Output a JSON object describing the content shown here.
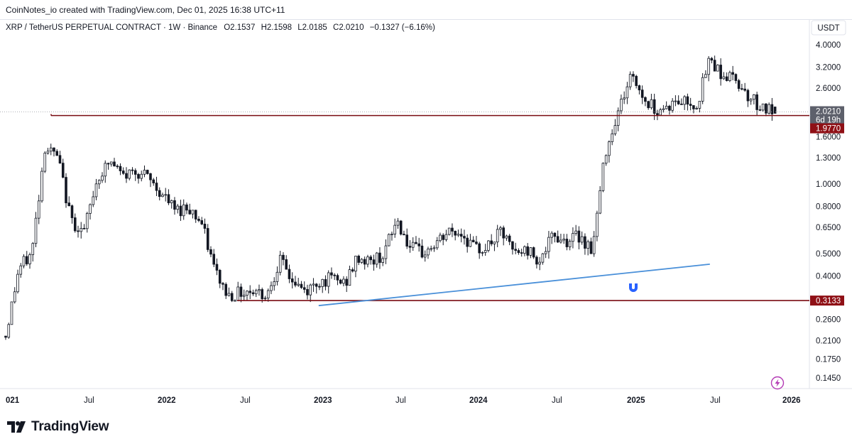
{
  "caption": "CoinNotes_io created with TradingView.com, Dec 01, 2025 16:38 UTC+11",
  "brand": {
    "name": "TradingView"
  },
  "colors": {
    "up_candle": "#131722",
    "down_candle": "#131722",
    "resistance_line": "#7a0c12",
    "trendline": "#4a90d9",
    "label_red": "#8f1016",
    "label_gray": "#5d606b"
  },
  "chart_data": {
    "type": "candlestick",
    "symbol": "XRP / TetherUS PERPETUAL CONTRACT · 1W · Binance",
    "ohlc_label": {
      "open": "O2.1537",
      "high": "H2.1598",
      "low": "L2.0185",
      "close": "C2.0210",
      "change": "−0.1327 (−6.16%)"
    },
    "currency": "USDT",
    "y_scale": "log",
    "y_ticks": [
      "4.0000",
      "3.2000",
      "2.6000",
      "1.6000",
      "1.3000",
      "1.0000",
      "0.8000",
      "0.6500",
      "0.5000",
      "0.4000",
      "0.2600",
      "0.2100",
      "0.1750",
      "0.1450"
    ],
    "x_ticks": [
      {
        "label": "021",
        "bold": true
      },
      {
        "label": "Jul",
        "bold": false
      },
      {
        "label": "2022",
        "bold": true
      },
      {
        "label": "Jul",
        "bold": false
      },
      {
        "label": "2023",
        "bold": true
      },
      {
        "label": "Jul",
        "bold": false
      },
      {
        "label": "2024",
        "bold": true
      },
      {
        "label": "Jul",
        "bold": false
      },
      {
        "label": "2025",
        "bold": true
      },
      {
        "label": "Jul",
        "bold": false
      },
      {
        "label": "2026",
        "bold": true
      }
    ],
    "price_labels": {
      "last_price": "2.0210",
      "countdown": "6d 19h",
      "resistance": "1.9770",
      "support": "0.3133"
    },
    "lines": {
      "resistance_level": 1.977,
      "support_level": 0.3133,
      "trendline": {
        "from": {
          "x": "2023-01",
          "y": 0.298
        },
        "to": {
          "x": "2025-07",
          "y": 0.45
        }
      }
    },
    "close_path": [
      [
        "2021-01",
        0.22
      ],
      [
        "2021-02",
        0.43
      ],
      [
        "2021-03",
        0.5
      ],
      [
        "2021-04",
        1.45
      ],
      [
        "2021-05",
        1.3
      ],
      [
        "2021-06",
        0.7
      ],
      [
        "2021-07",
        0.62
      ],
      [
        "2021-08",
        1.05
      ],
      [
        "2021-09",
        1.25
      ],
      [
        "2021-10",
        1.08
      ],
      [
        "2021-11",
        1.15
      ],
      [
        "2021-12",
        1.05
      ],
      [
        "2022-01",
        0.9
      ],
      [
        "2022-02",
        0.77
      ],
      [
        "2022-03",
        0.8
      ],
      [
        "2022-04",
        0.68
      ],
      [
        "2022-05",
        0.43
      ],
      [
        "2022-06",
        0.33
      ],
      [
        "2022-07",
        0.34
      ],
      [
        "2022-08",
        0.35
      ],
      [
        "2022-09",
        0.33
      ],
      [
        "2022-10",
        0.47
      ],
      [
        "2022-11",
        0.38
      ],
      [
        "2022-12",
        0.34
      ],
      [
        "2023-01",
        0.38
      ],
      [
        "2023-02",
        0.39
      ],
      [
        "2023-03",
        0.37
      ],
      [
        "2023-04",
        0.48
      ],
      [
        "2023-05",
        0.46
      ],
      [
        "2023-06",
        0.5
      ],
      [
        "2023-07",
        0.7
      ],
      [
        "2023-08",
        0.53
      ],
      [
        "2023-09",
        0.5
      ],
      [
        "2023-10",
        0.55
      ],
      [
        "2023-11",
        0.62
      ],
      [
        "2023-12",
        0.61
      ],
      [
        "2024-01",
        0.52
      ],
      [
        "2024-02",
        0.54
      ],
      [
        "2024-03",
        0.62
      ],
      [
        "2024-04",
        0.5
      ],
      [
        "2024-05",
        0.52
      ],
      [
        "2024-06",
        0.47
      ],
      [
        "2024-07",
        0.6
      ],
      [
        "2024-08",
        0.57
      ],
      [
        "2024-09",
        0.6
      ],
      [
        "2024-10",
        0.52
      ],
      [
        "2024-11",
        1.4
      ],
      [
        "2024-12",
        2.1
      ],
      [
        "2025-01",
        3.0
      ],
      [
        "2025-02",
        2.3
      ],
      [
        "2025-03",
        2.1
      ],
      [
        "2025-04",
        2.2
      ],
      [
        "2025-05",
        2.3
      ],
      [
        "2025-06",
        2.2
      ],
      [
        "2025-07",
        3.5
      ],
      [
        "2025-08",
        2.95
      ],
      [
        "2025-09",
        2.85
      ],
      [
        "2025-10",
        2.4
      ],
      [
        "2025-11",
        2.15
      ],
      [
        "2025-12",
        2.02
      ]
    ]
  }
}
